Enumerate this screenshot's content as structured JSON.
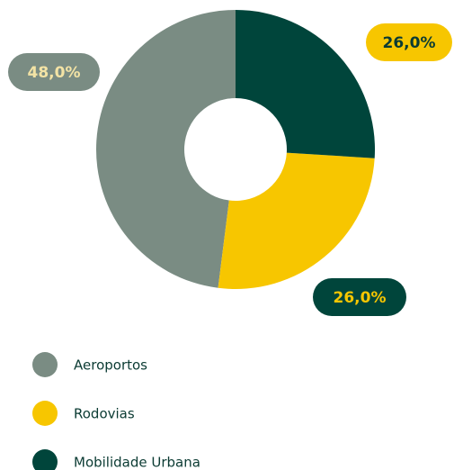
{
  "chart_data": {
    "type": "donut",
    "categories": [
      "Aeroportos",
      "Rodovias",
      "Mobilidade Urbana"
    ],
    "values": [
      48,
      26,
      26
    ],
    "value_labels": [
      "48,0%",
      "26,0%",
      "26,0%"
    ],
    "colors": [
      "#7a8c83",
      "#f7c600",
      "#00453b"
    ]
  }
}
